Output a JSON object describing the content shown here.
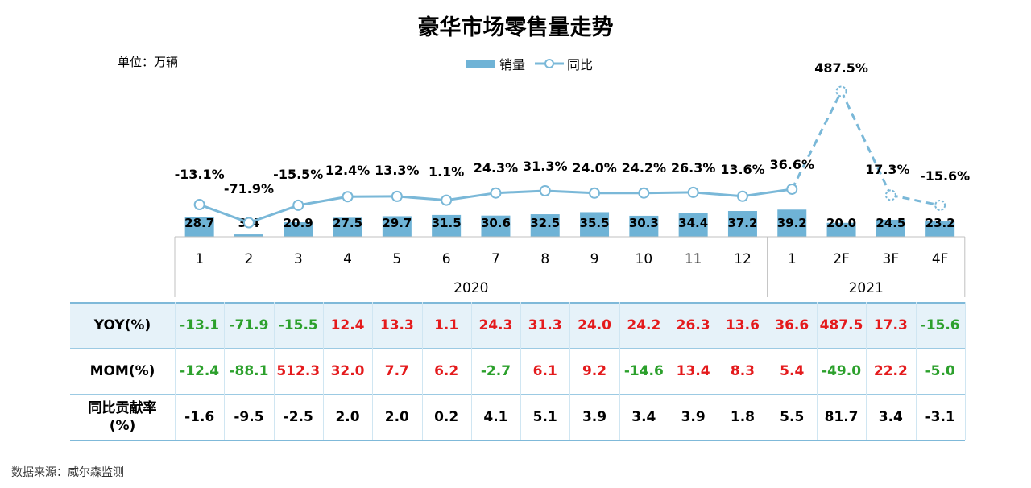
{
  "page": {
    "title": "豪华市场零售量走势",
    "unit": "单位：万辆",
    "source": "数据来源：威尔森监测"
  },
  "legend": {
    "bar": "销量",
    "line": "同比"
  },
  "colors": {
    "bar": "#6fb3d6",
    "line": "#7ab8d8",
    "positive": "#e41a1c",
    "negative": "#2ca02c",
    "header_bg": "#e6f2f9"
  },
  "chart_data": {
    "type": "bar",
    "categories": [
      "1",
      "2",
      "3",
      "4",
      "5",
      "6",
      "7",
      "8",
      "9",
      "10",
      "11",
      "12",
      "1",
      "2F",
      "3F",
      "4F"
    ],
    "groups": [
      {
        "label": "2020",
        "count": 12
      },
      {
        "label": "2021",
        "count": 4
      }
    ],
    "series": [
      {
        "name": "销量",
        "type": "bar",
        "values": [
          28.7,
          3.4,
          20.9,
          27.5,
          29.7,
          31.5,
          30.6,
          32.5,
          35.5,
          30.3,
          34.4,
          37.2,
          39.2,
          20.0,
          24.5,
          23.2
        ]
      },
      {
        "name": "同比",
        "type": "line",
        "dashed_from_index": 13,
        "values": [
          -13.1,
          -71.9,
          -15.5,
          12.4,
          13.3,
          1.1,
          24.3,
          31.3,
          24.0,
          24.2,
          26.3,
          13.6,
          36.6,
          487.5,
          17.3,
          -15.6
        ]
      }
    ],
    "value_labels": [
      "28.7",
      "3.4",
      "20.9",
      "27.5",
      "29.7",
      "31.5",
      "30.6",
      "32.5",
      "35.5",
      "30.3",
      "34.4",
      "37.2",
      "39.2",
      "20.0",
      "24.5",
      "23.2"
    ],
    "line_labels": [
      "-13.1%",
      "-71.9%",
      "-15.5%",
      "12.4%",
      "13.3%",
      "1.1%",
      "24.3%",
      "31.3%",
      "24.0%",
      "24.2%",
      "26.3%",
      "13.6%",
      "36.6%",
      "487.5%",
      "17.3%",
      "-15.6%"
    ]
  },
  "table": {
    "rows": [
      {
        "label": "YOY(%)",
        "highlight": true,
        "values": [
          "-13.1",
          "-71.9",
          "-15.5",
          "12.4",
          "13.3",
          "1.1",
          "24.3",
          "31.3",
          "24.0",
          "24.2",
          "26.3",
          "13.6",
          "36.6",
          "487.5",
          "17.3",
          "-15.6"
        ],
        "colored": true
      },
      {
        "label": "MOM(%)",
        "highlight": false,
        "values": [
          "-12.4",
          "-88.1",
          "512.3",
          "32.0",
          "7.7",
          "6.2",
          "-2.7",
          "6.1",
          "9.2",
          "-14.6",
          "13.4",
          "8.3",
          "5.4",
          "-49.0",
          "22.2",
          "-5.0"
        ],
        "colored": true
      },
      {
        "label": "同比贡献率\n(%)",
        "highlight": false,
        "values": [
          "-1.6",
          "-9.5",
          "-2.5",
          "2.0",
          "2.0",
          "0.2",
          "4.1",
          "5.1",
          "3.9",
          "3.4",
          "3.9",
          "1.8",
          "5.5",
          "81.7",
          "3.4",
          "-3.1"
        ],
        "colored": false
      }
    ]
  }
}
